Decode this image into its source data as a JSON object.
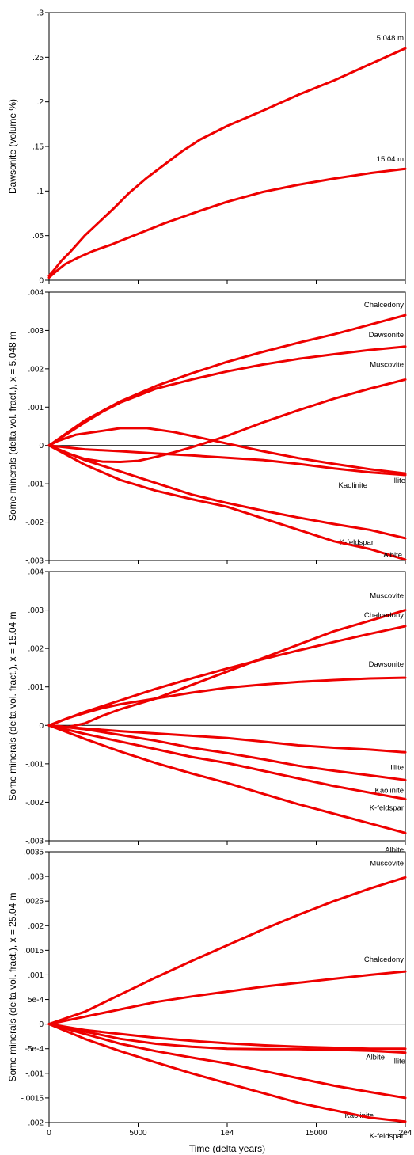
{
  "colors": {
    "series": "#ee0000",
    "axis": "#000000",
    "zero_line": "#000000"
  },
  "x_axis": {
    "label": "Time (delta years)",
    "range": [
      0,
      20000
    ],
    "ticks": [
      0,
      5000,
      10000,
      15000,
      20000
    ],
    "tick_labels": [
      "0",
      "5000",
      "1e4",
      "15000",
      "2e4"
    ]
  },
  "chart_data": [
    {
      "type": "line",
      "ylabel": "Dawsonite (volume %)",
      "xlim": [
        0,
        20000
      ],
      "ylim": [
        0,
        0.3
      ],
      "ytick_values": [
        0,
        0.05,
        0.1,
        0.15,
        0.2,
        0.25,
        0.3
      ],
      "ytick_labels": [
        "0",
        ".05",
        ".1",
        ".15",
        ".2",
        ".25",
        ".3"
      ],
      "zero_line": false,
      "series": [
        {
          "name": "5.048 m",
          "x": [
            0,
            300,
            700,
            1200,
            2000,
            2800,
            3600,
            4500,
            5500,
            6500,
            7500,
            8500,
            10000,
            12000,
            14000,
            16000,
            18000,
            20000
          ],
          "y": [
            0.005,
            0.012,
            0.022,
            0.032,
            0.05,
            0.065,
            0.08,
            0.098,
            0.115,
            0.13,
            0.145,
            0.158,
            0.173,
            0.19,
            0.208,
            0.224,
            0.242,
            0.26
          ]
        },
        {
          "name": "15.04 m",
          "x": [
            0,
            400,
            900,
            1600,
            2500,
            3500,
            4500,
            5500,
            6500,
            7500,
            8500,
            10000,
            12000,
            14000,
            16000,
            18000,
            20000
          ],
          "y": [
            0.003,
            0.01,
            0.018,
            0.025,
            0.033,
            0.04,
            0.048,
            0.056,
            0.064,
            0.071,
            0.078,
            0.088,
            0.099,
            0.107,
            0.114,
            0.12,
            0.125
          ]
        }
      ]
    },
    {
      "type": "line",
      "ylabel": "Some minerals (delta vol. fract.), x = 5.048 m",
      "xlim": [
        0,
        20000
      ],
      "ylim": [
        -0.003,
        0.004
      ],
      "ytick_values": [
        -0.003,
        -0.002,
        -0.001,
        0,
        0.001,
        0.002,
        0.003,
        0.004
      ],
      "ytick_labels": [
        "-.003",
        "-.002",
        "-.001",
        "0",
        ".001",
        ".002",
        ".003",
        ".004"
      ],
      "zero_line": true,
      "series": [
        {
          "name": "Chalcedony",
          "x": [
            0,
            2000,
            4000,
            6000,
            8000,
            10000,
            12000,
            14000,
            16000,
            18000,
            20000
          ],
          "y": [
            0,
            0.00065,
            0.00115,
            0.00155,
            0.00188,
            0.00218,
            0.00244,
            0.00268,
            0.0029,
            0.00315,
            0.0034
          ]
        },
        {
          "name": "Dawsonite",
          "x": [
            0,
            1000,
            2000,
            3000,
            4000,
            6000,
            8000,
            10000,
            12000,
            14000,
            16000,
            18000,
            20000
          ],
          "y": [
            0,
            0.0003,
            0.0006,
            0.00088,
            0.00112,
            0.00148,
            0.00172,
            0.00193,
            0.00211,
            0.00226,
            0.00238,
            0.00249,
            0.00258
          ]
        },
        {
          "name": "Muscovite",
          "x": [
            0,
            1000,
            2000,
            3000,
            4000,
            5000,
            6000,
            7000,
            8000,
            9000,
            10000,
            12000,
            14000,
            16000,
            18000,
            20000
          ],
          "y": [
            0,
            -0.0002,
            -0.00035,
            -0.00042,
            -0.00043,
            -0.0004,
            -0.0003,
            -0.00018,
            -5e-05,
            0.0001,
            0.00025,
            0.0006,
            0.00092,
            0.00122,
            0.00148,
            0.00172
          ]
        },
        {
          "name": "Kaolinite",
          "x": [
            0,
            500,
            1500,
            3000,
            4000,
            5500,
            7000,
            8500,
            10000,
            12000,
            14000,
            16000,
            18000,
            20000
          ],
          "y": [
            0,
            0.00012,
            0.00028,
            0.00038,
            0.00045,
            0.00045,
            0.00035,
            0.0002,
            5e-05,
            -0.00015,
            -0.00033,
            -0.00048,
            -0.00062,
            -0.00073
          ]
        },
        {
          "name": "Illite",
          "x": [
            0,
            2000,
            4000,
            6000,
            8000,
            10000,
            12000,
            14000,
            16000,
            18000,
            20000
          ],
          "y": [
            0,
            -0.0001,
            -0.00015,
            -0.00021,
            -0.00026,
            -0.00032,
            -0.00038,
            -0.00048,
            -0.0006,
            -0.0007,
            -0.00077
          ]
        },
        {
          "name": "K-feldspar",
          "x": [
            0,
            2000,
            4000,
            6000,
            8000,
            10000,
            12000,
            14000,
            16000,
            18000,
            20000
          ],
          "y": [
            0,
            -0.00038,
            -0.00068,
            -0.00098,
            -0.00128,
            -0.0015,
            -0.0017,
            -0.00188,
            -0.00205,
            -0.0022,
            -0.00242
          ]
        },
        {
          "name": "Albite",
          "x": [
            0,
            2000,
            4000,
            6000,
            8000,
            10000,
            12000,
            14000,
            16000,
            18000,
            20000
          ],
          "y": [
            0,
            -0.0005,
            -0.0009,
            -0.00118,
            -0.0014,
            -0.0016,
            -0.0019,
            -0.0022,
            -0.0025,
            -0.0027,
            -0.00298
          ]
        }
      ]
    },
    {
      "type": "line",
      "ylabel": "Some minerals (delta vol. fract.), x = 15.04 m",
      "xlim": [
        0,
        20000
      ],
      "ylim": [
        -0.003,
        0.004
      ],
      "ytick_values": [
        -0.003,
        -0.002,
        -0.001,
        0,
        0.001,
        0.002,
        0.003,
        0.004
      ],
      "ytick_labels": [
        "-.003",
        "-.002",
        "-.001",
        "0",
        ".001",
        ".002",
        ".003",
        ".004"
      ],
      "zero_line": true,
      "series": [
        {
          "name": "Muscovite",
          "x": [
            0,
            1000,
            2000,
            3000,
            4000,
            6000,
            8000,
            10000,
            12000,
            14000,
            16000,
            18000,
            20000
          ],
          "y": [
            0,
            -5e-05,
            5e-05,
            0.00025,
            0.00042,
            0.0007,
            0.00105,
            0.0014,
            0.00175,
            0.0021,
            0.00245,
            0.00272,
            0.003
          ]
        },
        {
          "name": "Chalcedony",
          "x": [
            0,
            2000,
            4000,
            6000,
            8000,
            10000,
            12000,
            14000,
            16000,
            18000,
            20000
          ],
          "y": [
            0,
            0.00035,
            0.00065,
            0.00095,
            0.00122,
            0.00148,
            0.00172,
            0.00195,
            0.00217,
            0.00238,
            0.00258
          ]
        },
        {
          "name": "Dawsonite",
          "x": [
            0,
            1000,
            2000,
            3000,
            4000,
            6000,
            8000,
            10000,
            12000,
            14000,
            16000,
            18000,
            20000
          ],
          "y": [
            0,
            0.00018,
            0.00032,
            0.00045,
            0.00055,
            0.0007,
            0.00085,
            0.00098,
            0.00106,
            0.00113,
            0.00118,
            0.00122,
            0.00124
          ]
        },
        {
          "name": "Illite",
          "x": [
            0,
            2000,
            4000,
            6000,
            8000,
            10000,
            12000,
            14000,
            16000,
            18000,
            20000
          ],
          "y": [
            0,
            -8e-05,
            -0.00015,
            -0.00021,
            -0.00027,
            -0.00033,
            -0.00042,
            -0.00052,
            -0.00058,
            -0.00063,
            -0.0007
          ]
        },
        {
          "name": "Kaolinite",
          "x": [
            0,
            2000,
            4000,
            6000,
            8000,
            10000,
            12000,
            14000,
            16000,
            18000,
            20000
          ],
          "y": [
            0,
            -0.0001,
            -0.00025,
            -0.0004,
            -0.00058,
            -0.00072,
            -0.00088,
            -0.00105,
            -0.00118,
            -0.0013,
            -0.00142
          ]
        },
        {
          "name": "K-feldspar",
          "x": [
            0,
            2000,
            4000,
            6000,
            8000,
            10000,
            12000,
            14000,
            16000,
            18000,
            20000
          ],
          "y": [
            0,
            -0.00022,
            -0.00042,
            -0.00062,
            -0.00082,
            -0.00098,
            -0.00118,
            -0.00138,
            -0.00158,
            -0.00175,
            -0.00192
          ]
        },
        {
          "name": "Albite",
          "x": [
            0,
            2000,
            4000,
            6000,
            8000,
            10000,
            12000,
            14000,
            16000,
            18000,
            20000
          ],
          "y": [
            0,
            -0.00035,
            -0.00068,
            -0.00098,
            -0.00125,
            -0.0015,
            -0.00178,
            -0.00205,
            -0.0023,
            -0.00255,
            -0.0028
          ]
        }
      ]
    },
    {
      "type": "line",
      "ylabel": "Some minerals (delta vol. fract.), x = 25.04 m",
      "xlim": [
        0,
        20000
      ],
      "ylim": [
        -0.002,
        0.0035
      ],
      "ytick_values": [
        -0.002,
        -0.0015,
        -0.001,
        -0.0005,
        0,
        0.0005,
        0.001,
        0.0015,
        0.002,
        0.0025,
        0.003,
        0.0035
      ],
      "ytick_labels": [
        "-.002",
        "-.0015",
        "-.001",
        "-5e-4",
        "0",
        "5e-4",
        ".001",
        ".0015",
        ".002",
        ".0025",
        ".003",
        ".0035"
      ],
      "zero_line": true,
      "series": [
        {
          "name": "Muscovite",
          "x": [
            0,
            2000,
            4000,
            6000,
            8000,
            10000,
            12000,
            14000,
            16000,
            18000,
            20000
          ],
          "y": [
            0,
            0.00025,
            0.0006,
            0.00095,
            0.00128,
            0.0016,
            0.00192,
            0.00222,
            0.0025,
            0.00275,
            0.00298
          ]
        },
        {
          "name": "Chalcedony",
          "x": [
            0,
            2000,
            4000,
            6000,
            8000,
            10000,
            12000,
            14000,
            16000,
            18000,
            20000
          ],
          "y": [
            0,
            0.00015,
            0.0003,
            0.00045,
            0.00056,
            0.00066,
            0.00076,
            0.00084,
            0.00092,
            0.001,
            0.00107
          ]
        },
        {
          "name": "Albite",
          "x": [
            0,
            2000,
            4000,
            6000,
            8000,
            10000,
            12000,
            14000,
            16000,
            18000,
            20000
          ],
          "y": [
            0,
            -0.00012,
            -0.0002,
            -0.00028,
            -0.00034,
            -0.00039,
            -0.00043,
            -0.00046,
            -0.00048,
            -0.0005,
            -0.0005
          ]
        },
        {
          "name": "Illite",
          "x": [
            0,
            2000,
            4000,
            6000,
            8000,
            10000,
            12000,
            14000,
            16000,
            18000,
            20000
          ],
          "y": [
            0,
            -0.00015,
            -0.0003,
            -0.0004,
            -0.00046,
            -0.0005,
            -0.00051,
            -0.00051,
            -0.00052,
            -0.00054,
            -0.00058
          ]
        },
        {
          "name": "Kaolinite",
          "x": [
            0,
            2000,
            4000,
            6000,
            8000,
            10000,
            12000,
            14000,
            16000,
            18000,
            20000
          ],
          "y": [
            0,
            -0.0002,
            -0.0004,
            -0.00055,
            -0.00068,
            -0.0008,
            -0.00095,
            -0.0011,
            -0.00125,
            -0.00138,
            -0.0015
          ]
        },
        {
          "name": "K-feldspar",
          "x": [
            0,
            2000,
            4000,
            6000,
            8000,
            10000,
            12000,
            14000,
            16000,
            18000,
            20000
          ],
          "y": [
            0,
            -0.0003,
            -0.00055,
            -0.00078,
            -0.001,
            -0.0012,
            -0.0014,
            -0.0016,
            -0.00175,
            -0.0019,
            -0.00198
          ]
        }
      ]
    }
  ]
}
